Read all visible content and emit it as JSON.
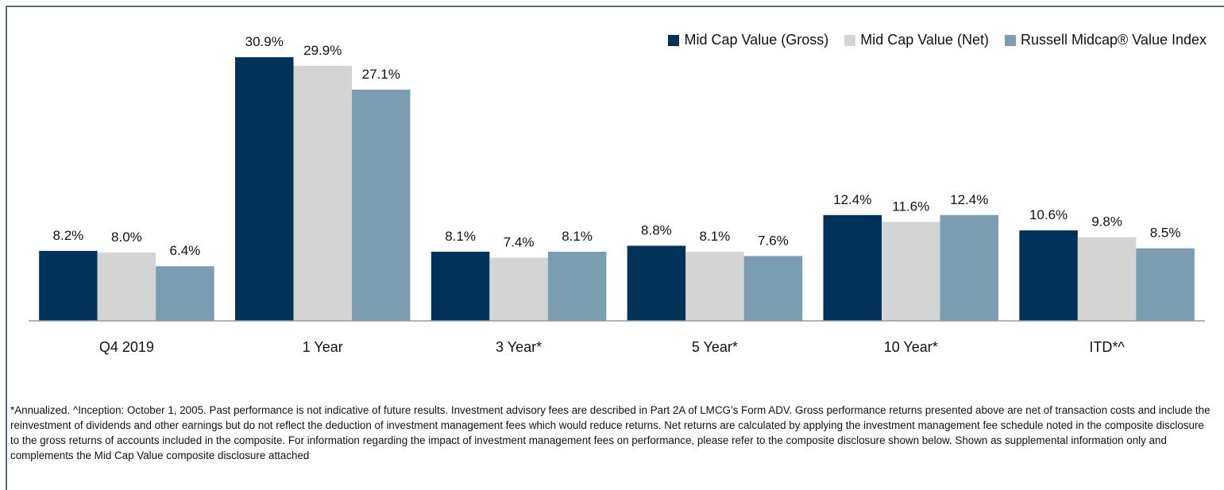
{
  "chart_data": {
    "type": "bar",
    "categories": [
      "Q4 2019",
      "1 Year",
      "3 Year*",
      "5 Year*",
      "10 Year*",
      "ITD*^"
    ],
    "series": [
      {
        "name": "Mid Cap Value (Gross)",
        "color": "#00325a",
        "values": [
          8.2,
          30.9,
          8.1,
          8.8,
          12.4,
          10.6
        ],
        "value_labels": [
          "8.2%",
          "30.9%",
          "8.1%",
          "8.8%",
          "12.4%",
          "10.6%"
        ]
      },
      {
        "name": "Mid Cap Value (Net)",
        "color": "#d4d4d4",
        "values": [
          8.0,
          29.9,
          7.4,
          8.1,
          11.6,
          9.8
        ],
        "value_labels": [
          "8.0%",
          "29.9%",
          "7.4%",
          "8.1%",
          "11.6%",
          "9.8%"
        ]
      },
      {
        "name": "Russell Midcap® Value Index",
        "color": "#7b9db1",
        "values": [
          6.4,
          27.1,
          8.1,
          7.6,
          12.4,
          8.5
        ],
        "value_labels": [
          "6.4%",
          "27.1%",
          "8.1%",
          "7.6%",
          "12.4%",
          "8.5%"
        ]
      }
    ],
    "ylim": [
      0,
      35
    ],
    "legend": "top-right"
  },
  "footnote": "*Annualized.  ^Inception: October 1, 2005.  Past performance is not indicative of future results. Investment advisory fees are described in Part 2A of LMCG’s Form ADV. Gross performance returns presented above are net of transaction costs and include the reinvestment of dividends and other earnings but do not reflect the deduction of investment management fees which would reduce returns. Net returns are calculated by applying the investment management fee schedule noted in the composite disclosure to the gross returns of accounts included in the composite. For information regarding the impact of investment management fees on performance, please refer to the composite disclosure shown below. Shown as supplemental information only and complements the Mid Cap Value composite disclosure attached"
}
